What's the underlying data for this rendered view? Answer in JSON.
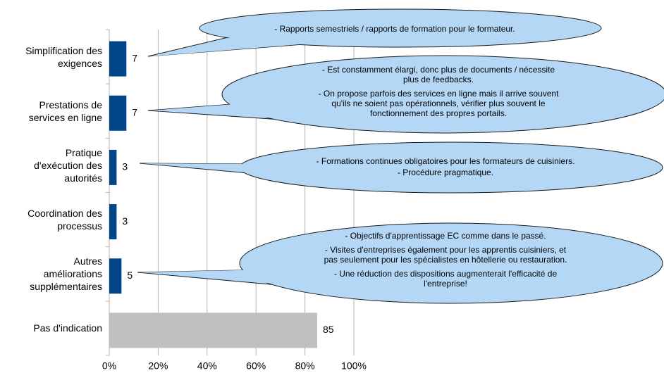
{
  "chart_data": {
    "type": "hbar",
    "categories": [
      "Simplification des\nexigences",
      "Prestations de\nservices en ligne",
      "Pratique\nd'exécution des\nautorités",
      "Coordination des\nprocessus",
      "Autres\naméliorations\nsupplémentaires",
      "Pas d'indication"
    ],
    "values": [
      7,
      7,
      3,
      3,
      5,
      85
    ],
    "colors": [
      "#004586",
      "#004586",
      "#004586",
      "#004586",
      "#004586",
      "#c0c0c0"
    ],
    "xlim": [
      0,
      100
    ],
    "xticks": [
      {
        "value": 0,
        "label": "0%"
      },
      {
        "value": 20,
        "label": "20%"
      },
      {
        "value": 40,
        "label": "40%"
      },
      {
        "value": 60,
        "label": "60%"
      },
      {
        "value": 80,
        "label": "80%"
      },
      {
        "value": 100,
        "label": "100%"
      }
    ],
    "grid": true,
    "annotations": [
      [
        "- Rapports semestriels / rapports de formation pour le formateur."
      ],
      [
        "- Est constamment élargi, donc plus de documents / nécessite",
        "plus de feedbacks.",
        "- On propose parfois des services en ligne mais il arrive souvent",
        "qu'ils ne soient pas opérationnels, vérifier plus souvent le",
        "fonctionnement des propres portails."
      ],
      [
        "- Formations continues obligatoires pour les formateurs de cuisiniers.",
        "- Procédure pragmatique."
      ],
      [
        "- Objectifs d'apprentissage EC comme dans le passé.",
        "- Visites d'entreprises également pour les apprentis cuisiniers, et",
        "pas seulement pour les spécialistes en hôtellerie ou restauration.",
        "- Une réduction des dispositions augmenterait l'efficacité de",
        "l'entreprise!"
      ]
    ]
  }
}
